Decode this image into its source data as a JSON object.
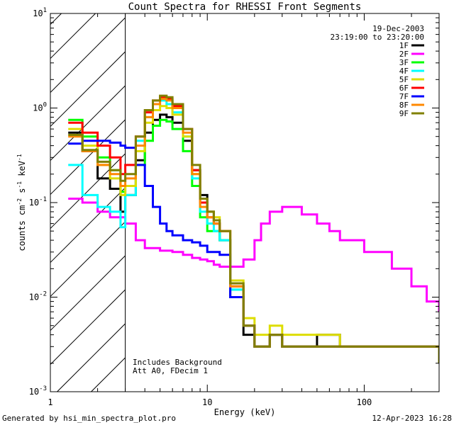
{
  "chart_data": {
    "type": "line",
    "title": "Count Spectra for RHESSI Front Segments",
    "xlabel": "Energy (keV)",
    "ylabel_parts": {
      "base": "counts cm",
      "exp1": "-2",
      "mid": " s",
      "exp2": "-1",
      "unit": " keV",
      "exp3": "-1"
    },
    "xscale": "log",
    "yscale": "log",
    "xlim": [
      1,
      300
    ],
    "ylim": [
      0.001,
      10
    ],
    "x_ticks": [
      {
        "value": 1,
        "label": "1"
      },
      {
        "value": 10,
        "label": "10"
      },
      {
        "value": 100,
        "label": "100"
      }
    ],
    "y_ticks": [
      {
        "value": 10,
        "base": "10",
        "exp": "1"
      },
      {
        "value": 1,
        "base": "10",
        "exp": "0"
      },
      {
        "value": 0.1,
        "base": "10",
        "exp": "-1"
      },
      {
        "value": 0.01,
        "base": "10",
        "exp": "-2"
      },
      {
        "value": 0.001,
        "base": "10",
        "exp": "-3"
      }
    ],
    "hatched_region": {
      "x_from": 1,
      "x_to": 3
    },
    "legend_header": [
      "19-Dec-2003",
      "23:19:00 to 23:20:00"
    ],
    "annotations": [
      "Includes Background",
      "Att A0, FDecim 1"
    ],
    "footer_left": "Generated by hsi_min_spectra_plot.pro",
    "footer_right": "12-Apr-2023 16:28",
    "series": [
      {
        "name": "1F",
        "color": "#000000",
        "x": [
          1.3,
          1.6,
          2,
          2.4,
          2.8,
          3,
          3.5,
          4,
          4.5,
          5,
          5.5,
          6,
          7,
          8,
          9,
          10,
          11,
          12,
          14,
          17,
          20,
          25,
          30,
          40,
          50,
          70,
          100,
          150,
          200,
          300
        ],
        "y": [
          0.55,
          0.35,
          0.18,
          0.14,
          0.08,
          0.12,
          0.28,
          0.55,
          0.75,
          0.85,
          0.8,
          0.7,
          0.45,
          0.22,
          0.12,
          0.08,
          0.06,
          0.04,
          0.01,
          0.004,
          0.003,
          0.004,
          0.003,
          0.003,
          0.004,
          0.003,
          0.003,
          0.003,
          0.003,
          0.002
        ]
      },
      {
        "name": "2F",
        "color": "#ff00ff",
        "x": [
          1.3,
          1.6,
          2,
          2.4,
          2.8,
          3,
          3.5,
          4,
          5,
          6,
          7,
          8,
          9,
          10,
          11,
          12,
          14,
          17,
          20,
          22,
          25,
          30,
          40,
          50,
          60,
          70,
          100,
          150,
          200,
          250,
          300
        ],
        "y": [
          0.11,
          0.1,
          0.08,
          0.07,
          0.07,
          0.06,
          0.04,
          0.033,
          0.031,
          0.03,
          0.028,
          0.026,
          0.025,
          0.024,
          0.022,
          0.021,
          0.021,
          0.025,
          0.04,
          0.06,
          0.08,
          0.09,
          0.075,
          0.06,
          0.05,
          0.04,
          0.03,
          0.02,
          0.013,
          0.009,
          0.007
        ]
      },
      {
        "name": "3F",
        "color": "#00ff00",
        "x": [
          1.3,
          1.6,
          2,
          2.4,
          2.8,
          3,
          3.5,
          4,
          4.5,
          5,
          5.5,
          6,
          7,
          8,
          9,
          10,
          11,
          12,
          14,
          17,
          20,
          25,
          30,
          40,
          50,
          70,
          100,
          150,
          200,
          300
        ],
        "y": [
          0.75,
          0.5,
          0.3,
          0.22,
          0.13,
          0.15,
          0.25,
          0.45,
          0.65,
          0.75,
          0.72,
          0.6,
          0.35,
          0.15,
          0.07,
          0.05,
          0.05,
          0.04,
          0.012,
          0.005,
          0.003,
          0.004,
          0.003,
          0.003,
          0.003,
          0.003,
          0.003,
          0.003,
          0.003,
          0.002
        ]
      },
      {
        "name": "4F",
        "color": "#00ffff",
        "x": [
          1.3,
          1.6,
          2,
          2.4,
          2.8,
          3,
          3.5,
          4,
          4.5,
          5,
          5.5,
          6,
          7,
          8,
          9,
          10,
          11,
          12,
          14,
          17,
          20,
          25,
          30,
          40,
          50,
          70,
          100,
          150,
          200,
          300
        ],
        "y": [
          0.25,
          0.12,
          0.09,
          0.08,
          0.055,
          0.12,
          0.45,
          0.8,
          1.1,
          1.2,
          1.1,
          0.9,
          0.5,
          0.18,
          0.08,
          0.06,
          0.05,
          0.04,
          0.012,
          0.005,
          0.003,
          0.004,
          0.003,
          0.003,
          0.003,
          0.003,
          0.003,
          0.003,
          0.003,
          0.002
        ]
      },
      {
        "name": "5F",
        "color": "#dddd00",
        "x": [
          1.3,
          1.6,
          2,
          2.4,
          2.8,
          3,
          3.5,
          4,
          4.5,
          5,
          5.5,
          6,
          7,
          8,
          9,
          10,
          11,
          12,
          14,
          17,
          20,
          25,
          30,
          40,
          50,
          70,
          100,
          150,
          200,
          300
        ],
        "y": [
          0.6,
          0.4,
          0.25,
          0.18,
          0.12,
          0.15,
          0.35,
          0.7,
          0.95,
          1.05,
          1.0,
          0.85,
          0.5,
          0.2,
          0.1,
          0.08,
          0.07,
          0.05,
          0.015,
          0.006,
          0.004,
          0.005,
          0.004,
          0.004,
          0.004,
          0.003,
          0.003,
          0.003,
          0.003,
          0.002
        ]
      },
      {
        "name": "6F",
        "color": "#ff0000",
        "x": [
          1.3,
          1.6,
          2,
          2.4,
          2.8,
          3,
          3.5,
          4,
          4.5,
          5,
          5.5,
          6,
          7,
          8,
          9,
          10,
          11,
          12,
          14,
          17,
          20,
          25,
          30,
          40,
          50,
          70,
          100,
          150,
          200,
          300
        ],
        "y": [
          0.7,
          0.55,
          0.4,
          0.3,
          0.2,
          0.25,
          0.5,
          0.9,
          1.2,
          1.3,
          1.25,
          1.05,
          0.6,
          0.22,
          0.1,
          0.07,
          0.06,
          0.05,
          0.013,
          0.005,
          0.003,
          0.004,
          0.003,
          0.003,
          0.003,
          0.003,
          0.003,
          0.003,
          0.003,
          0.002
        ]
      },
      {
        "name": "7F",
        "color": "#0000ff",
        "x": [
          1.3,
          1.6,
          2,
          2.4,
          2.8,
          3,
          3.5,
          4,
          4.5,
          5,
          5.5,
          6,
          7,
          8,
          9,
          10,
          11,
          12,
          14,
          17,
          20,
          25,
          30,
          40,
          50,
          70,
          100,
          150,
          200,
          300
        ],
        "y": [
          0.42,
          0.45,
          0.45,
          0.43,
          0.4,
          0.38,
          0.25,
          0.15,
          0.09,
          0.06,
          0.05,
          0.045,
          0.04,
          0.038,
          0.035,
          0.03,
          0.03,
          0.028,
          0.01,
          0.005,
          0.003,
          0.004,
          0.003,
          0.003,
          0.003,
          0.003,
          0.003,
          0.003,
          0.003,
          0.002
        ]
      },
      {
        "name": "8F",
        "color": "#ff8800",
        "x": [
          1.3,
          1.6,
          2,
          2.4,
          2.8,
          3,
          3.5,
          4,
          4.5,
          5,
          5.5,
          6,
          7,
          8,
          9,
          10,
          11,
          12,
          14,
          17,
          20,
          25,
          30,
          40,
          50,
          70,
          100,
          150,
          200,
          300
        ],
        "y": [
          0.5,
          0.35,
          0.25,
          0.2,
          0.15,
          0.18,
          0.4,
          0.8,
          1.1,
          1.25,
          1.2,
          1.0,
          0.55,
          0.2,
          0.09,
          0.07,
          0.06,
          0.05,
          0.013,
          0.005,
          0.003,
          0.004,
          0.003,
          0.003,
          0.003,
          0.003,
          0.003,
          0.003,
          0.003,
          0.002
        ]
      },
      {
        "name": "9F",
        "color": "#808000",
        "x": [
          1.3,
          1.6,
          2,
          2.4,
          2.8,
          3,
          3.5,
          4,
          4.5,
          5,
          5.5,
          6,
          7,
          8,
          9,
          10,
          11,
          12,
          14,
          17,
          20,
          25,
          30,
          40,
          50,
          70,
          100,
          150,
          200,
          300
        ],
        "y": [
          0.52,
          0.36,
          0.27,
          0.22,
          0.17,
          0.2,
          0.5,
          0.95,
          1.2,
          1.35,
          1.3,
          1.1,
          0.6,
          0.25,
          0.11,
          0.08,
          0.065,
          0.05,
          0.014,
          0.005,
          0.003,
          0.004,
          0.003,
          0.003,
          0.003,
          0.003,
          0.003,
          0.003,
          0.003,
          0.002
        ]
      }
    ]
  }
}
